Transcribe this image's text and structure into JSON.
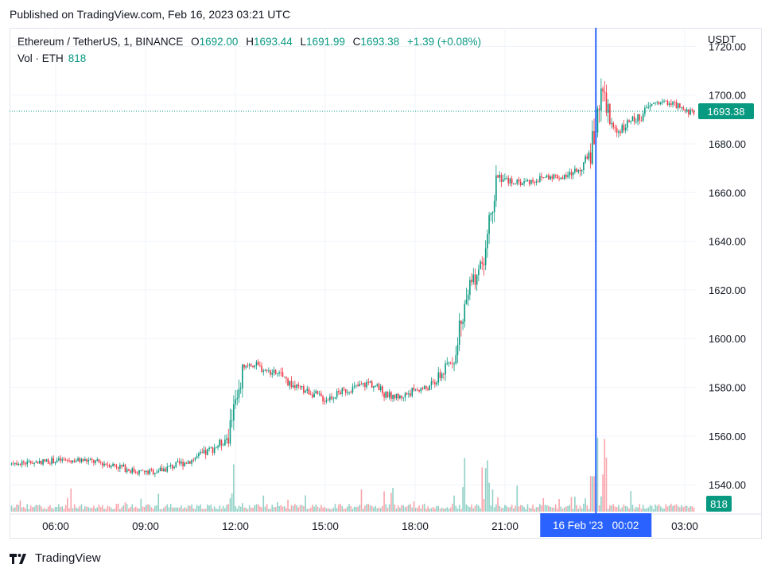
{
  "published": "Published on TradingView.com, Feb 16, 2023 03:21 UTC",
  "legend": {
    "symbol": "Ethereum / TetherUS, 1, BINANCE",
    "open_label": "O",
    "open": "1692.00",
    "high_label": "H",
    "high": "1693.44",
    "low_label": "L",
    "low": "1691.99",
    "close_label": "C",
    "close": "1693.38",
    "change": "+1.39 (+0.08%)",
    "volume_label": "Vol · ETH",
    "volume": "818"
  },
  "footer": {
    "brand": "TradingView",
    "logo_icon": "tradingview-logo-icon"
  },
  "colors": {
    "up": "#089981",
    "down": "#f23645",
    "crosshair": "#2962ff",
    "grid": "#f0f3fa"
  },
  "chart_data": {
    "type": "candlestick",
    "currency": "USDT",
    "ylim": [
      1528,
      1725
    ],
    "y_ticks": [
      "1540.00",
      "1560.00",
      "1580.00",
      "1600.00",
      "1620.00",
      "1640.00",
      "1660.00",
      "1680.00",
      "1700.00",
      "1720.00"
    ],
    "x_ticks": [
      "06:00",
      "09:00",
      "12:00",
      "15:00",
      "18:00",
      "21:00",
      "03:00"
    ],
    "last_price": "1693.38",
    "last_volume": "818",
    "crosshair_label": "16 Feb '23   00:02",
    "price_path": [
      [
        "04:00",
        1550
      ],
      [
        "05:00",
        1549
      ],
      [
        "06:00",
        1550
      ],
      [
        "07:00",
        1550
      ],
      [
        "08:00",
        1548
      ],
      [
        "08:30",
        1546
      ],
      [
        "09:00",
        1545
      ],
      [
        "09:30",
        1546
      ],
      [
        "10:00",
        1548
      ],
      [
        "10:30",
        1550
      ],
      [
        "11:00",
        1553
      ],
      [
        "11:30",
        1557
      ],
      [
        "11:45",
        1560
      ],
      [
        "12:00",
        1575
      ],
      [
        "12:15",
        1586
      ],
      [
        "12:30",
        1590
      ],
      [
        "13:00",
        1587
      ],
      [
        "13:30",
        1585
      ],
      [
        "14:00",
        1580
      ],
      [
        "14:30",
        1578
      ],
      [
        "15:00",
        1575
      ],
      [
        "15:30",
        1578
      ],
      [
        "16:00",
        1580
      ],
      [
        "16:30",
        1582
      ],
      [
        "17:00",
        1577
      ],
      [
        "17:30",
        1576
      ],
      [
        "18:00",
        1579
      ],
      [
        "18:30",
        1580
      ],
      [
        "19:00",
        1587
      ],
      [
        "19:15",
        1592
      ],
      [
        "19:30",
        1605
      ],
      [
        "19:45",
        1620
      ],
      [
        "20:00",
        1625
      ],
      [
        "20:15",
        1632
      ],
      [
        "20:30",
        1648
      ],
      [
        "20:45",
        1668
      ],
      [
        "21:00",
        1665
      ],
      [
        "21:30",
        1664
      ],
      [
        "22:00",
        1665
      ],
      [
        "22:30",
        1667
      ],
      [
        "23:00",
        1666
      ],
      [
        "23:30",
        1670
      ],
      [
        "23:50",
        1675
      ],
      [
        "00:02",
        1688
      ],
      [
        "00:15",
        1708
      ],
      [
        "00:30",
        1688
      ],
      [
        "00:45",
        1685
      ],
      [
        "01:00",
        1688
      ],
      [
        "01:30",
        1691
      ],
      [
        "02:00",
        1697
      ],
      [
        "02:30",
        1697
      ],
      [
        "03:00",
        1693
      ],
      [
        "03:21",
        1693.38
      ]
    ]
  }
}
